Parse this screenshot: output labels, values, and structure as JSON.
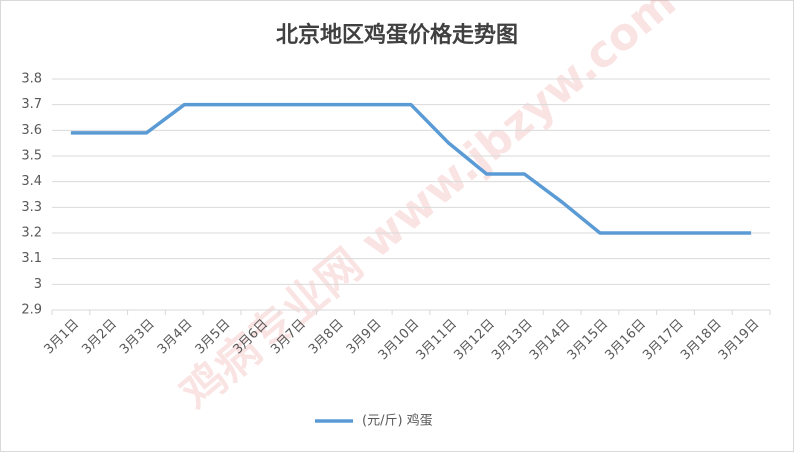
{
  "chart_data": {
    "type": "line",
    "title": "北京地区鸡蛋价格走势图",
    "watermark": "鸡病专业网 www.jbzyw.com",
    "categories": [
      "3月1日",
      "3月2日",
      "3月3日",
      "3月4日",
      "3月5日",
      "3月6日",
      "3月7日",
      "3月8日",
      "3月9日",
      "3月10日",
      "3月11日",
      "3月12日",
      "3月13日",
      "3月14日",
      "3月15日",
      "3月16日",
      "3月17日",
      "3月18日",
      "3月19日"
    ],
    "series": [
      {
        "name": "(元/斤) 鸡蛋",
        "color": "#5b9bd5",
        "values": [
          3.59,
          3.59,
          3.59,
          3.7,
          3.7,
          3.7,
          3.7,
          3.7,
          3.7,
          3.7,
          3.55,
          3.43,
          3.43,
          3.32,
          3.2,
          3.2,
          3.2,
          3.2,
          3.2
        ]
      }
    ],
    "ylim": [
      2.9,
      3.8
    ],
    "yticks": [
      2.9,
      3,
      3.1,
      3.2,
      3.3,
      3.4,
      3.5,
      3.6,
      3.7,
      3.8
    ],
    "grid": true,
    "legend": "bottom"
  }
}
